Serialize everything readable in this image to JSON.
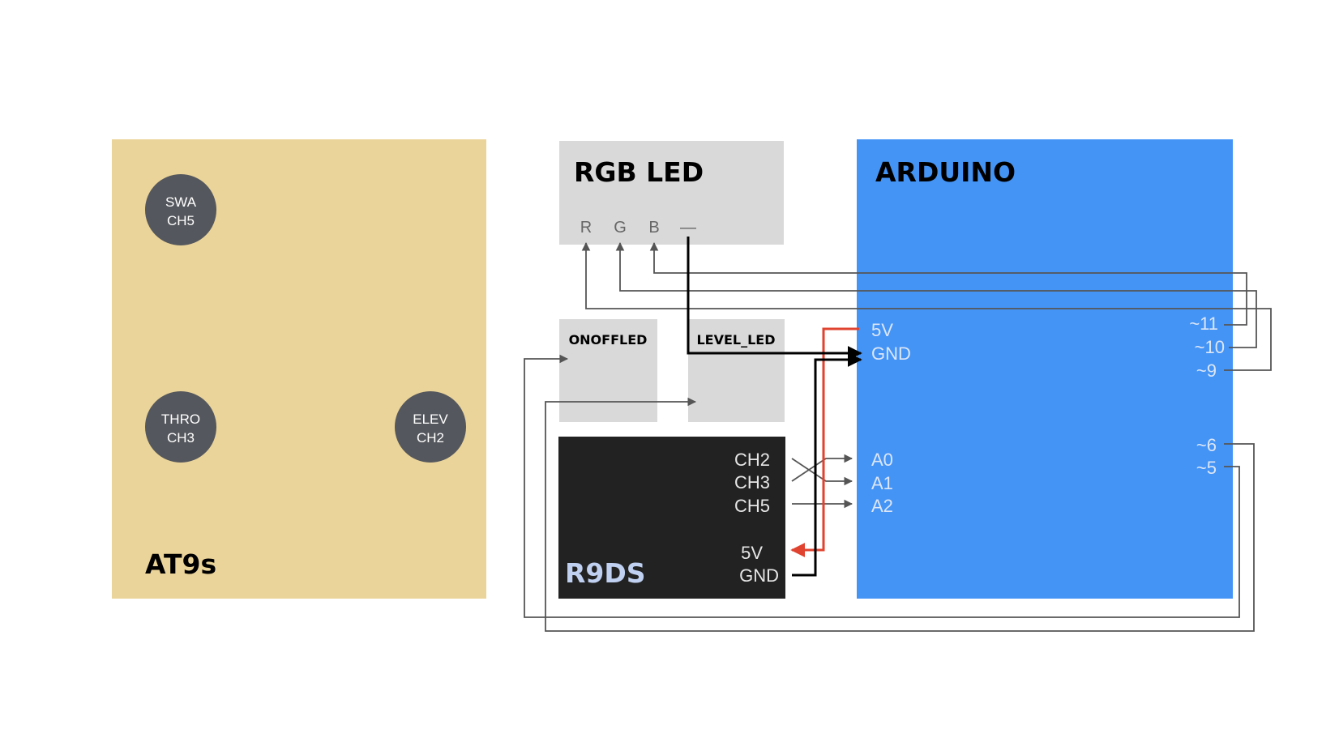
{
  "colors": {
    "transmitter_bg": "#EBD499",
    "knob_bg": "#54575D",
    "rgb_bg": "#D9D9D9",
    "led_bg": "#D9D9D9",
    "receiver_bg": "#222222",
    "arduino_bg": "#4494F6",
    "wire": "#555555",
    "wire_heavy": "#000000",
    "wire_power": "#E0432F",
    "pin_on_blue": "#DCE6F7",
    "pin_on_dark": "#E6E6E6",
    "pin_on_grey": "#666666",
    "receiver_title": "#BFD0F0"
  },
  "transmitter": {
    "title": "AT9s",
    "knobs": [
      {
        "line1": "SWA",
        "line2": "CH5"
      },
      {
        "line1": "THRO",
        "line2": "CH3"
      },
      {
        "line1": "ELEV",
        "line2": "CH2"
      }
    ]
  },
  "rgb_led": {
    "title": "RGB LED",
    "pins": [
      "R",
      "G",
      "B",
      "—"
    ]
  },
  "onoff_led": {
    "title": "ONOFFLED"
  },
  "level_led": {
    "title": "LEVEL_LED"
  },
  "receiver": {
    "title": "R9DS",
    "pins": [
      "CH2",
      "CH3",
      "CH5",
      "5V",
      "GND"
    ]
  },
  "arduino": {
    "title": "ARDUINO",
    "left_pins": [
      "5V",
      "GND",
      "A0",
      "A1",
      "A2"
    ],
    "right_pins": [
      "~11",
      "~10",
      "~9",
      "~6",
      "~5"
    ]
  }
}
